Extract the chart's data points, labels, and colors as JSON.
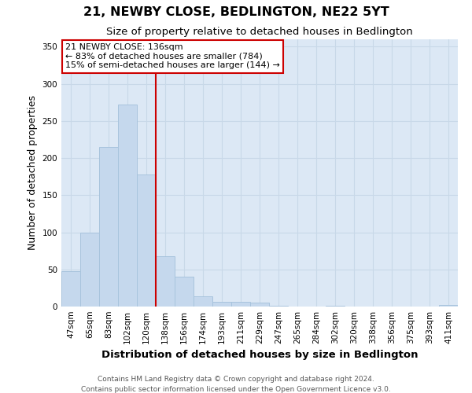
{
  "title": "21, NEWBY CLOSE, BEDLINGTON, NE22 5YT",
  "subtitle": "Size of property relative to detached houses in Bedlington",
  "xlabel": "Distribution of detached houses by size in Bedlington",
  "ylabel": "Number of detached properties",
  "bar_labels": [
    "47sqm",
    "65sqm",
    "83sqm",
    "102sqm",
    "120sqm",
    "138sqm",
    "156sqm",
    "174sqm",
    "193sqm",
    "211sqm",
    "229sqm",
    "247sqm",
    "265sqm",
    "284sqm",
    "302sqm",
    "320sqm",
    "338sqm",
    "356sqm",
    "375sqm",
    "393sqm",
    "411sqm"
  ],
  "bar_values": [
    48,
    100,
    215,
    272,
    178,
    68,
    40,
    14,
    6,
    6,
    5,
    1,
    0,
    0,
    1,
    0,
    0,
    0,
    0,
    0,
    2
  ],
  "bar_color": "#c5d8ed",
  "bar_edge_color": "#a8c4dd",
  "grid_color": "#c8d8e8",
  "background_color": "#dce8f5",
  "vline_color": "#cc0000",
  "annotation_text_line1": "21 NEWBY CLOSE: 136sqm",
  "annotation_text_line2": "← 83% of detached houses are smaller (784)",
  "annotation_text_line3": "15% of semi-detached houses are larger (144) →",
  "ylim": [
    0,
    360
  ],
  "yticks": [
    0,
    50,
    100,
    150,
    200,
    250,
    300,
    350
  ],
  "footer1": "Contains HM Land Registry data © Crown copyright and database right 2024.",
  "footer2": "Contains public sector information licensed under the Open Government Licence v3.0."
}
